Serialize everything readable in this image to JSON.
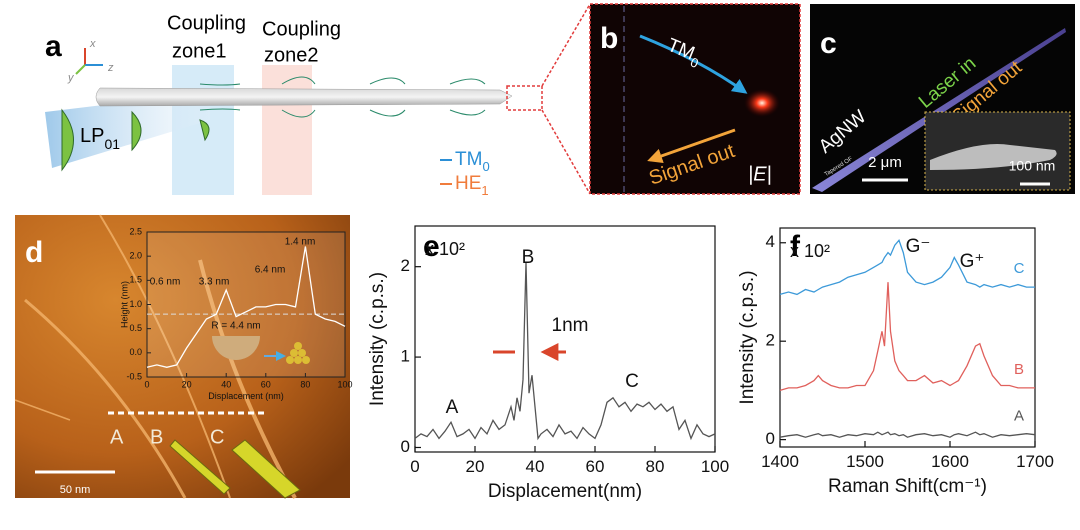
{
  "panels": {
    "a": {
      "label": "a",
      "axes": [
        "x",
        "y",
        "z"
      ],
      "zone1": [
        "Coupling",
        "zone1"
      ],
      "zone2": [
        "Coupling",
        "zone2"
      ],
      "mode": {
        "text": "LP",
        "sub": "01"
      },
      "legend": [
        {
          "text": "TM",
          "sub": "0",
          "color": "#2b8fd6"
        },
        {
          "text": "HE",
          "sub": "1",
          "color": "#f07c3c"
        }
      ]
    },
    "b": {
      "label": "b",
      "mode": {
        "text": "TM",
        "sub": "0"
      },
      "signal": "Signal out",
      "field": "|E|"
    },
    "c": {
      "label": "c",
      "wire": "AgNW",
      "laser": "Laser in",
      "signal": "Signal out",
      "fiber": "Tapered OF",
      "scale": "2 μm",
      "inset_scale": "100 nm"
    },
    "d": {
      "label": "d",
      "scale": "50 nm",
      "markers": [
        "A",
        "B",
        "C"
      ]
    },
    "e": {
      "label": "e"
    },
    "f": {
      "label": "f"
    }
  },
  "chart_data": [
    {
      "type": "line",
      "xlabel": "Displacement (nm)",
      "ylabel": "Height (nm)",
      "x": [
        0,
        5,
        10,
        15,
        20,
        25,
        30,
        35,
        40,
        45,
        50,
        55,
        60,
        65,
        70,
        75,
        80,
        85,
        90,
        95,
        100
      ],
      "values": [
        -0.3,
        -0.25,
        -0.3,
        -0.25,
        0.1,
        0.4,
        0.7,
        0.8,
        1.3,
        0.75,
        0.85,
        0.95,
        0.95,
        1.0,
        1.0,
        0.95,
        2.2,
        0.8,
        0.7,
        0.65,
        0.55
      ],
      "color": "#ffffff",
      "reference_line": 0.8,
      "xlim": [
        0,
        100
      ],
      "xticks": [
        0,
        20,
        40,
        60,
        80,
        100
      ],
      "ylim": [
        -0.5,
        2.5
      ],
      "yticks": [
        -0.5,
        {
          "value": 0,
          "label": "0.0"
        },
        0.5,
        {
          "value": 1,
          "label": "1.0"
        },
        1.5,
        {
          "value": 2,
          "label": "2.0"
        },
        2.5
      ],
      "annotations": [
        "0.6 nm",
        "3.3 nm",
        "6.4 nm",
        "1.4 nm",
        "R = 4.4 nm"
      ]
    },
    {
      "type": "line",
      "xlabel": "Displacement(nm)",
      "ylabel": "Intensity (c.p.s.)",
      "multiplier": "x 10²",
      "x": [
        0,
        2,
        4,
        6,
        8,
        10,
        12,
        14,
        16,
        18,
        20,
        22,
        24,
        26,
        28,
        30,
        32,
        33,
        34,
        35,
        36,
        37,
        38,
        39,
        40,
        41,
        42,
        44,
        46,
        48,
        50,
        52,
        54,
        56,
        58,
        60,
        62,
        64,
        66,
        68,
        70,
        72,
        74,
        76,
        78,
        80,
        82,
        84,
        86,
        88,
        90,
        92,
        94,
        96,
        98,
        100
      ],
      "values": [
        0.1,
        0.15,
        0.12,
        0.2,
        0.1,
        0.18,
        0.28,
        0.12,
        0.15,
        0.2,
        0.1,
        0.22,
        0.15,
        0.3,
        0.2,
        0.25,
        0.45,
        0.3,
        0.55,
        0.4,
        0.75,
        2.05,
        0.6,
        0.8,
        0.45,
        0.1,
        0.15,
        0.2,
        0.12,
        0.25,
        0.15,
        0.18,
        0.1,
        0.22,
        0.15,
        0.1,
        0.25,
        0.5,
        0.55,
        0.45,
        0.5,
        0.4,
        0.48,
        0.45,
        0.5,
        0.42,
        0.48,
        0.4,
        0.45,
        0.2,
        0.3,
        0.1,
        0.25,
        0.15,
        0.12,
        0.15
      ],
      "color": "#555555",
      "xlim": [
        0,
        100
      ],
      "xticks": [
        0,
        20,
        40,
        60,
        80,
        100
      ],
      "ylim": [
        -0.05,
        2.45
      ],
      "yticks": [
        0,
        1,
        2
      ],
      "annotations": [
        "A",
        "B",
        "1nm",
        "C"
      ]
    },
    {
      "type": "line",
      "xlabel": "Raman Shift(cm⁻¹)",
      "ylabel": "Intensity (c.p.s.)",
      "multiplier": "x 10²",
      "x": [
        1400,
        1410,
        1420,
        1430,
        1440,
        1445,
        1450,
        1460,
        1470,
        1480,
        1490,
        1500,
        1510,
        1515,
        1520,
        1523,
        1527,
        1530,
        1535,
        1540,
        1545,
        1550,
        1560,
        1570,
        1580,
        1590,
        1600,
        1605,
        1610,
        1620,
        1630,
        1635,
        1640,
        1650,
        1660,
        1670,
        1680,
        1690,
        1700
      ],
      "series": [
        {
          "name": "C",
          "color": "#3d9ad9",
          "values": [
            2.95,
            3.0,
            2.95,
            3.05,
            3.0,
            3.05,
            3.1,
            3.15,
            3.2,
            3.3,
            3.35,
            3.4,
            3.5,
            3.55,
            3.6,
            3.7,
            3.8,
            3.75,
            3.95,
            4.05,
            3.8,
            3.4,
            3.2,
            3.15,
            3.2,
            3.3,
            3.5,
            3.7,
            3.55,
            3.2,
            3.15,
            3.1,
            3.15,
            3.1,
            3.15,
            3.1,
            3.15,
            3.1,
            3.1
          ]
        },
        {
          "name": "B",
          "color": "#e0605c",
          "values": [
            1.0,
            1.05,
            1.05,
            1.1,
            1.2,
            1.3,
            1.2,
            1.1,
            1.05,
            1.05,
            1.1,
            1.1,
            1.4,
            1.8,
            2.2,
            1.9,
            3.2,
            2.2,
            1.6,
            1.4,
            1.3,
            1.2,
            1.2,
            1.3,
            1.15,
            1.2,
            1.1,
            1.15,
            1.2,
            1.5,
            1.9,
            1.95,
            1.7,
            1.3,
            1.1,
            1.1,
            1.05,
            1.05,
            1.05
          ]
        },
        {
          "name": "A",
          "color": "#555555",
          "values": [
            0.05,
            0.08,
            0.1,
            0.05,
            0.1,
            0.12,
            0.08,
            0.1,
            0.05,
            0.1,
            0.08,
            0.12,
            0.1,
            0.15,
            0.1,
            0.12,
            0.15,
            0.1,
            0.12,
            0.08,
            0.1,
            0.05,
            0.1,
            0.12,
            0.08,
            0.1,
            0.05,
            0.1,
            0.12,
            0.08,
            0.15,
            0.1,
            0.12,
            0.05,
            0.1,
            0.08,
            0.1,
            0.12,
            0.1
          ]
        }
      ],
      "xlim": [
        1400,
        1700
      ],
      "xticks": [
        1400,
        1500,
        1600,
        1700
      ],
      "ylim": [
        -0.15,
        4.3
      ],
      "yticks": [
        0,
        2,
        4
      ],
      "annotations": [
        "G⁻",
        "G⁺"
      ]
    }
  ]
}
